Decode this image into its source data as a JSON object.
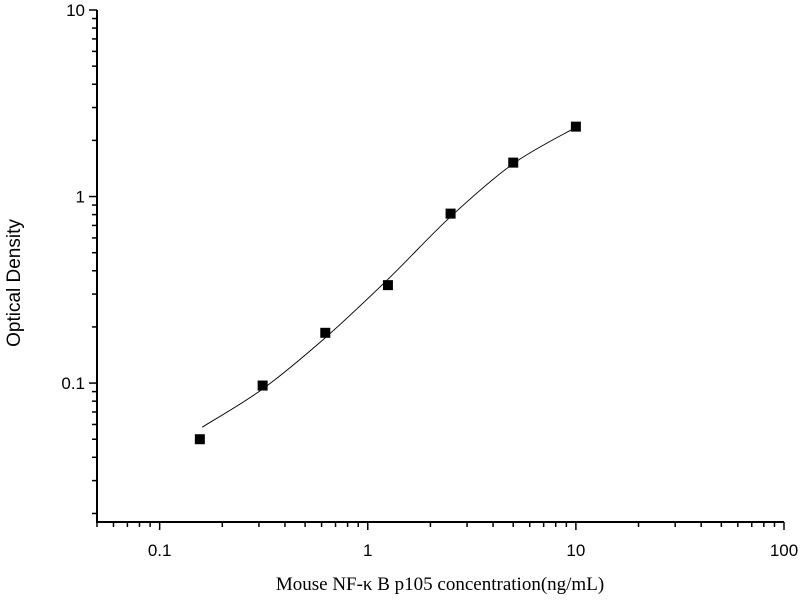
{
  "chart_data": {
    "type": "scatter",
    "title": "",
    "xlabel": "Mouse NF-κ B p105 concentration(ng/mL)",
    "ylabel": "Optical Density",
    "xscale": "log",
    "yscale": "log",
    "xlim": [
      0.05,
      100
    ],
    "ylim": [
      0.018,
      10
    ],
    "x_tick_labels": [
      "0.1",
      "1",
      "10",
      "100"
    ],
    "x_ticks": [
      0.1,
      1,
      10,
      100
    ],
    "y_tick_labels": [
      "0.1",
      "1",
      "10"
    ],
    "y_ticks": [
      0.1,
      1,
      10
    ],
    "grid": false,
    "legend": "none",
    "marker": "square",
    "marker_color": "#000000",
    "line_color": "#000000",
    "series": [
      {
        "x": [
          0.156,
          0.3125,
          0.625,
          1.25,
          2.5,
          5,
          10
        ],
        "y": [
          0.05,
          0.097,
          0.186,
          0.335,
          0.81,
          1.52,
          2.37
        ]
      }
    ],
    "fit_curve": {
      "x": [
        0.16,
        0.3125,
        0.625,
        1.25,
        2.5,
        5,
        10
      ],
      "y": [
        0.058,
        0.093,
        0.175,
        0.36,
        0.78,
        1.5,
        2.35
      ]
    }
  }
}
